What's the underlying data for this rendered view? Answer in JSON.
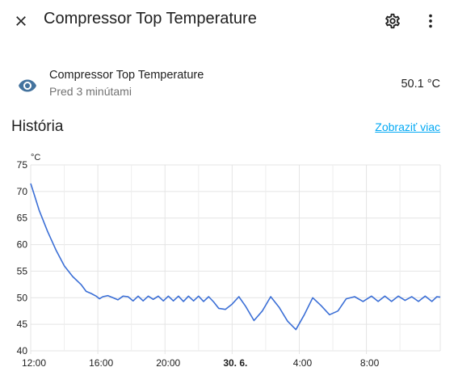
{
  "header": {
    "title": "Compressor Top Temperature"
  },
  "entity": {
    "name": "Compressor Top Temperature",
    "last_changed": "Pred 3 minútami",
    "state": "50.1 °C",
    "icon": "eye-icon"
  },
  "history": {
    "title": "História",
    "show_more_label": "Zobraziť viac"
  },
  "colors": {
    "line": "#3b6fd6",
    "accent_link": "#03a9f4",
    "icon": "#44739e"
  },
  "chart_data": {
    "type": "line",
    "ylabel": "°C",
    "ylim": [
      40,
      75
    ],
    "yticks": [
      40,
      45,
      50,
      55,
      60,
      65,
      70,
      75
    ],
    "xlim": [
      0,
      24.4
    ],
    "xticks": [
      {
        "x": 0,
        "label": "12:00",
        "bold": false
      },
      {
        "x": 4,
        "label": "16:00",
        "bold": false
      },
      {
        "x": 8,
        "label": "20:00",
        "bold": false
      },
      {
        "x": 12,
        "label": "30. 6.",
        "bold": true
      },
      {
        "x": 16,
        "label": "4:00",
        "bold": false
      },
      {
        "x": 20,
        "label": "8:00",
        "bold": false
      }
    ],
    "grid": true,
    "series": [
      {
        "x": [
          0,
          0.2,
          0.5,
          1.0,
          1.5,
          2.0,
          2.5,
          3.0,
          3.3,
          3.6,
          3.9,
          4.1,
          4.3,
          4.6,
          4.9,
          5.2,
          5.5,
          5.8,
          6.1,
          6.4,
          6.7,
          7.0,
          7.3,
          7.6,
          7.9,
          8.2,
          8.5,
          8.8,
          9.1,
          9.4,
          9.7,
          10.0,
          10.3,
          10.6,
          10.9,
          11.2,
          11.6,
          12.0,
          12.4,
          12.8,
          13.3,
          13.8,
          14.3,
          14.8,
          15.3,
          15.8,
          16.3,
          16.8,
          17.3,
          17.8,
          18.3,
          18.8,
          19.3,
          19.8,
          20.3,
          20.7,
          21.1,
          21.5,
          21.9,
          22.3,
          22.7,
          23.1,
          23.5,
          23.9,
          24.2,
          24.4
        ],
        "values": [
          71.5,
          69.5,
          66.5,
          62.5,
          59,
          56,
          54,
          52.5,
          51.2,
          50.8,
          50.3,
          49.8,
          50.2,
          50.4,
          50.0,
          49.6,
          50.3,
          50.2,
          49.4,
          50.3,
          49.4,
          50.3,
          49.7,
          50.3,
          49.4,
          50.3,
          49.4,
          50.3,
          49.3,
          50.3,
          49.4,
          50.3,
          49.3,
          50.2,
          49.2,
          48.0,
          47.8,
          48.8,
          50.2,
          48.4,
          45.7,
          47.5,
          50.2,
          48.2,
          45.6,
          44.0,
          46.8,
          50.0,
          48.5,
          46.8,
          47.5,
          49.8,
          50.2,
          49.3,
          50.3,
          49.3,
          50.3,
          49.3,
          50.3,
          49.5,
          50.2,
          49.3,
          50.3,
          49.3,
          50.2,
          50.1
        ]
      }
    ]
  }
}
